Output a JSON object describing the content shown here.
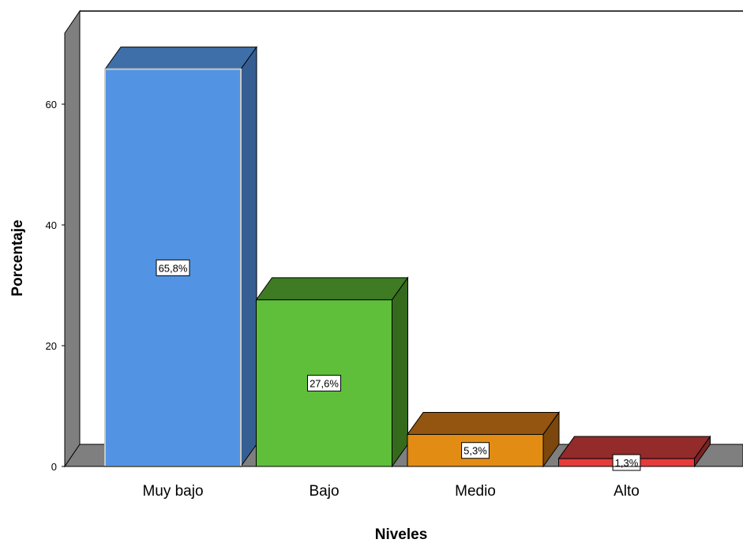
{
  "chart_data": {
    "type": "bar",
    "title": "",
    "xlabel": "Niveles",
    "ylabel": "Porcentaje",
    "categories": [
      "Muy bajo",
      "Bajo",
      "Medio",
      "Alto"
    ],
    "values": [
      65.8,
      27.6,
      5.3,
      1.3
    ],
    "value_labels": [
      "65,8%",
      "27,6%",
      "5,3%",
      "1,3%"
    ],
    "yticks": [
      0,
      20,
      40,
      60
    ],
    "ylim": [
      0,
      70
    ],
    "grid": false,
    "style": "3d",
    "colors": {
      "front": [
        "#5294e3",
        "#5fbf3a",
        "#e38c14",
        "#e53b3b"
      ],
      "top": [
        "#3e6fa8",
        "#3e7b22",
        "#93550f",
        "#932b2b"
      ],
      "side": [
        "#355f92",
        "#356a1d",
        "#7b470c",
        "#7a2323"
      ],
      "wall": "#7f7f7f"
    }
  }
}
